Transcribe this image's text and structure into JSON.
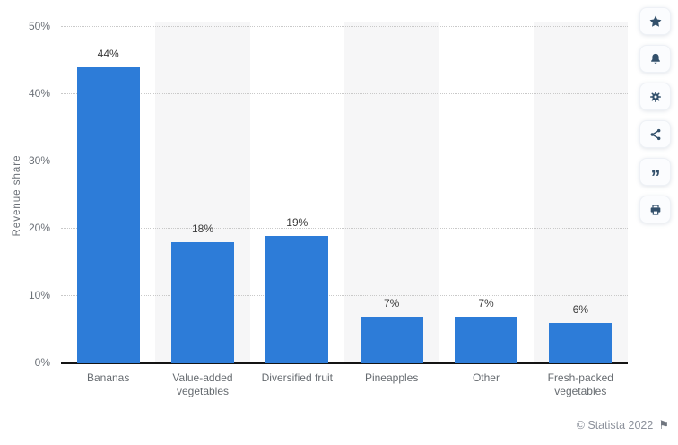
{
  "chart_data": {
    "type": "bar",
    "title": "",
    "xlabel": "",
    "ylabel": "Revenue share",
    "categories": [
      "Bananas",
      "Value-added vegetables",
      "Diversified fruit",
      "Pineapples",
      "Other",
      "Fresh-packed vegetables"
    ],
    "values": [
      44,
      18,
      19,
      7,
      7,
      6
    ],
    "value_labels": [
      "44%",
      "18%",
      "19%",
      "7%",
      "7%",
      "6%"
    ],
    "tick_values": [
      0,
      10,
      20,
      30,
      40,
      50
    ],
    "tick_labels": [
      "0%",
      "10%",
      "20%",
      "30%",
      "40%",
      "50%"
    ],
    "ylim": [
      0,
      50.8
    ],
    "grid": "horizontal-dotted",
    "legend": "none",
    "bar_color": "#2d7cd8",
    "stripe_color": "#f6f6f7",
    "stripe_pattern": "alternating columns, even columns shaded"
  },
  "sidebar": {
    "icon_color": "#33506b",
    "buttons": [
      {
        "name": "favorite",
        "icon": "star-icon"
      },
      {
        "name": "notifications",
        "icon": "bell-icon"
      },
      {
        "name": "settings",
        "icon": "gear-icon"
      },
      {
        "name": "share",
        "icon": "share-icon"
      },
      {
        "name": "cite",
        "icon": "quote-icon",
        "glyph": "”"
      },
      {
        "name": "print",
        "icon": "printer-icon"
      }
    ]
  },
  "footer": {
    "copyright": "© Statista 2022",
    "flag_glyph": "⚑"
  }
}
